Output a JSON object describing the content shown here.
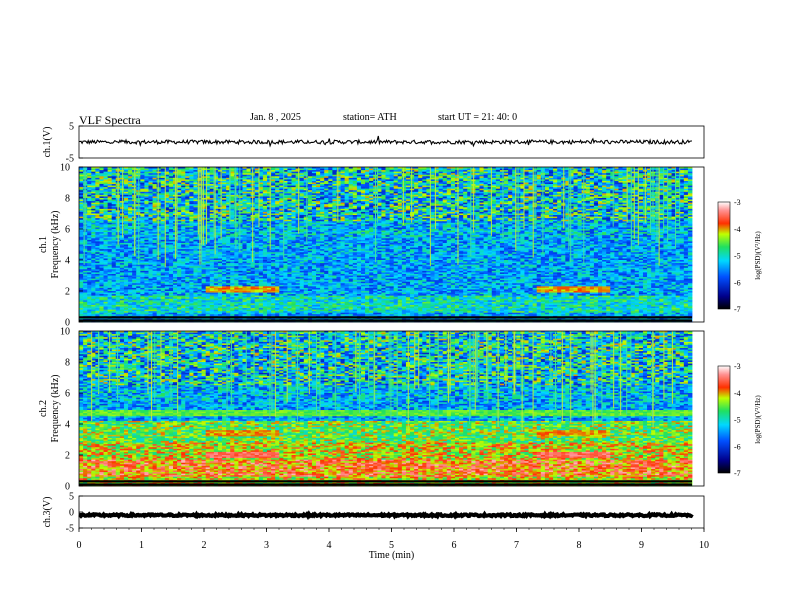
{
  "header": {
    "title": "VLF  Spectra",
    "date": "Jan. 8  , 2025",
    "station": "station= ATH",
    "start": "start  UT  =   21: 40: 0"
  },
  "chart_data": [
    {
      "type": "line",
      "name": "ch1-waveform",
      "ylabel": "ch.1(V)",
      "ylim": [
        -5,
        5
      ],
      "yticks": [
        "5",
        "-5"
      ],
      "xlim": [
        0,
        10
      ],
      "approx_level": 0,
      "approx_ripple": 0.6
    },
    {
      "type": "heatmap",
      "name": "ch1-spectrogram",
      "ylabel": "ch.1 Frequency (kHz)",
      "ylim": [
        0,
        10
      ],
      "yticks": [
        "0",
        "2",
        "4",
        "6",
        "8",
        "10"
      ],
      "xlim": [
        0,
        10
      ],
      "colorbar": {
        "label": "log(PSD)(V²/Hz)",
        "range": [
          -7,
          -3
        ],
        "ticks": [
          "-3",
          "-4",
          "-5",
          "-6",
          "-7"
        ]
      },
      "features": [
        {
          "freq_khz": 2.1,
          "time_min": [
            2.0,
            3.2
          ],
          "level": -4
        },
        {
          "freq_khz": 2.1,
          "time_min": [
            7.3,
            8.5
          ],
          "level": -4
        }
      ]
    },
    {
      "type": "heatmap",
      "name": "ch2-spectrogram",
      "ylabel": "ch.2 Frequency (kHz)",
      "ylim": [
        0,
        10
      ],
      "yticks": [
        "0",
        "2",
        "4",
        "6",
        "8",
        "10"
      ],
      "xlim": [
        0,
        10
      ],
      "colorbar": {
        "label": "log(PSD)(V²/Hz)",
        "range": [
          -7,
          -3
        ],
        "ticks": [
          "-3",
          "-4",
          "-5",
          "-6",
          "-7"
        ]
      },
      "features": [
        {
          "freq_khz": 2.0,
          "time_min": [
            2.0,
            3.2
          ],
          "level": -3.5
        },
        {
          "freq_khz": 2.0,
          "time_min": [
            7.3,
            8.5
          ],
          "level": -3.5
        },
        {
          "freq_khz": 3.4,
          "time_min": [
            2.0,
            3.2
          ],
          "level": -4
        },
        {
          "freq_khz": 3.4,
          "time_min": [
            7.3,
            8.5
          ],
          "level": -4
        },
        {
          "freq_khz": 4.7,
          "time_min": [
            0,
            9.8
          ],
          "level": -4.5
        }
      ]
    },
    {
      "type": "line",
      "name": "ch3-waveform",
      "ylabel": "ch.3(V)",
      "ylim": [
        -5,
        5
      ],
      "yticks": [
        "5",
        "0",
        "-5"
      ],
      "xlim": [
        0,
        10
      ],
      "approx_level": -1,
      "approx_ripple": 0.3
    }
  ],
  "xaxis": {
    "label": "Time  (min)",
    "ticks": [
      "0",
      "1",
      "2",
      "3",
      "4",
      "5",
      "6",
      "7",
      "8",
      "9",
      "10"
    ]
  }
}
